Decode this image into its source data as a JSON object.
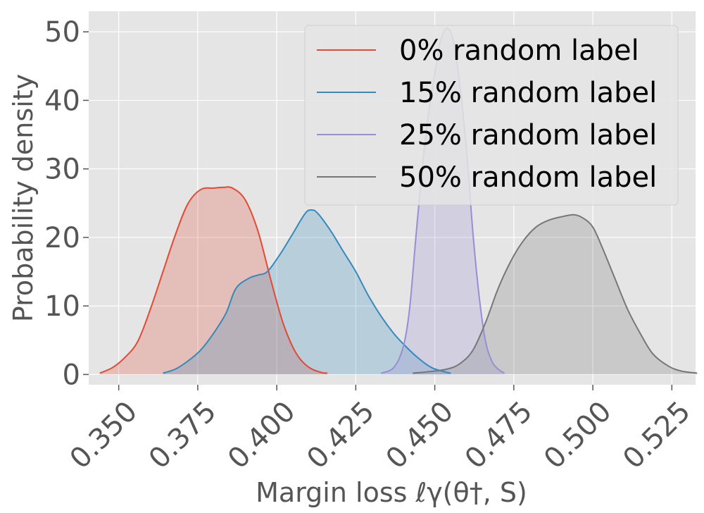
{
  "chart_data": {
    "type": "area",
    "title": "",
    "xlabel": "Margin loss ℓγ(θ†, S)",
    "ylabel": "Probability density",
    "xlim": [
      0.3405,
      0.5325
    ],
    "ylim": [
      -1.5,
      53
    ],
    "xticks": [
      0.35,
      0.375,
      0.4,
      0.425,
      0.45,
      0.475,
      0.5,
      0.525
    ],
    "xtick_labels": [
      "0.350",
      "0.375",
      "0.400",
      "0.425",
      "0.450",
      "0.475",
      "0.500",
      "0.525"
    ],
    "yticks": [
      0,
      10,
      20,
      30,
      40,
      50
    ],
    "ytick_labels": [
      "0",
      "10",
      "20",
      "30",
      "40",
      "50"
    ],
    "grid": true,
    "legend_position": "top-right",
    "series": [
      {
        "name": "0% random label",
        "color": "#E24A33",
        "points": [
          [
            0.344,
            0.2
          ],
          [
            0.348,
            1.0
          ],
          [
            0.352,
            2.5
          ],
          [
            0.356,
            4.8
          ],
          [
            0.36,
            9.5
          ],
          [
            0.364,
            15.0
          ],
          [
            0.368,
            20.5
          ],
          [
            0.372,
            25.0
          ],
          [
            0.376,
            27.0
          ],
          [
            0.38,
            27.2
          ],
          [
            0.383,
            27.3
          ],
          [
            0.386,
            27.2
          ],
          [
            0.39,
            25.5
          ],
          [
            0.394,
            21.0
          ],
          [
            0.398,
            14.0
          ],
          [
            0.402,
            7.5
          ],
          [
            0.406,
            3.2
          ],
          [
            0.41,
            1.1
          ],
          [
            0.414,
            0.3
          ],
          [
            0.416,
            0.2
          ]
        ]
      },
      {
        "name": "15% random label",
        "color": "#348ABD",
        "points": [
          [
            0.364,
            0.2
          ],
          [
            0.368,
            0.8
          ],
          [
            0.372,
            2.0
          ],
          [
            0.376,
            3.6
          ],
          [
            0.38,
            6.0
          ],
          [
            0.384,
            9.0
          ],
          [
            0.387,
            12.5
          ],
          [
            0.391,
            14.0
          ],
          [
            0.394,
            14.5
          ],
          [
            0.397,
            15.0
          ],
          [
            0.401,
            17.5
          ],
          [
            0.405,
            20.5
          ],
          [
            0.409,
            23.5
          ],
          [
            0.411,
            24.0
          ],
          [
            0.413,
            23.5
          ],
          [
            0.417,
            21.0
          ],
          [
            0.421,
            18.0
          ],
          [
            0.425,
            15.0
          ],
          [
            0.429,
            11.5
          ],
          [
            0.433,
            8.5
          ],
          [
            0.437,
            6.0
          ],
          [
            0.441,
            4.0
          ],
          [
            0.445,
            2.3
          ],
          [
            0.449,
            1.0
          ],
          [
            0.453,
            0.4
          ],
          [
            0.455,
            0.2
          ]
        ]
      },
      {
        "name": "25% random label",
        "color": "#988ED5",
        "points": [
          [
            0.433,
            0.2
          ],
          [
            0.437,
            1.0
          ],
          [
            0.44,
            4.0
          ],
          [
            0.442,
            9.5
          ],
          [
            0.444,
            20.0
          ],
          [
            0.446,
            30.0
          ],
          [
            0.448,
            38.0
          ],
          [
            0.45,
            44.0
          ],
          [
            0.452,
            49.0
          ],
          [
            0.454,
            50.5
          ],
          [
            0.456,
            48.5
          ],
          [
            0.458,
            42.0
          ],
          [
            0.46,
            33.0
          ],
          [
            0.462,
            21.0
          ],
          [
            0.464,
            11.5
          ],
          [
            0.466,
            5.0
          ],
          [
            0.468,
            2.0
          ],
          [
            0.47,
            0.8
          ],
          [
            0.472,
            0.2
          ]
        ]
      },
      {
        "name": "50% random label",
        "color": "#777777",
        "points": [
          [
            0.443,
            0.2
          ],
          [
            0.448,
            0.4
          ],
          [
            0.454,
            0.8
          ],
          [
            0.458,
            1.6
          ],
          [
            0.462,
            3.5
          ],
          [
            0.466,
            7.5
          ],
          [
            0.47,
            12.5
          ],
          [
            0.474,
            16.5
          ],
          [
            0.478,
            19.5
          ],
          [
            0.482,
            21.5
          ],
          [
            0.486,
            22.5
          ],
          [
            0.49,
            23.0
          ],
          [
            0.494,
            23.3
          ],
          [
            0.497,
            22.8
          ],
          [
            0.5,
            21.5
          ],
          [
            0.503,
            18.5
          ],
          [
            0.507,
            14.0
          ],
          [
            0.511,
            9.5
          ],
          [
            0.515,
            6.0
          ],
          [
            0.519,
            3.0
          ],
          [
            0.524,
            1.2
          ],
          [
            0.528,
            0.5
          ],
          [
            0.533,
            0.2
          ]
        ]
      }
    ]
  }
}
